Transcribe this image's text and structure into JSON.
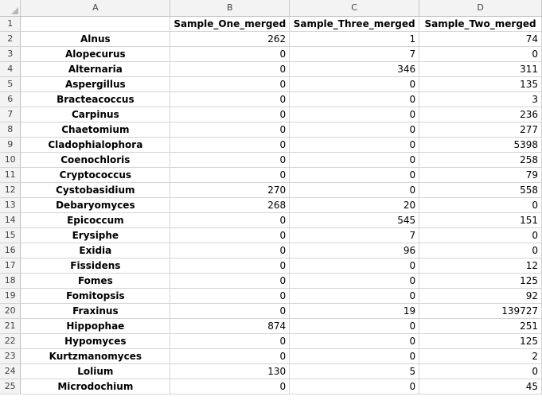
{
  "column_letters": [
    "A",
    "B",
    "C",
    "D"
  ],
  "header_row": {
    "row_number": "1",
    "cells": [
      "",
      "Sample_One_merged",
      "Sample_Three_merged",
      "Sample_Two_merged"
    ]
  },
  "rows": [
    {
      "row_number": "2",
      "name": "Alnus",
      "one": "262",
      "three": "1",
      "two": "74"
    },
    {
      "row_number": "3",
      "name": "Alopecurus",
      "one": "0",
      "three": "7",
      "two": "0"
    },
    {
      "row_number": "4",
      "name": "Alternaria",
      "one": "0",
      "three": "346",
      "two": "311"
    },
    {
      "row_number": "5",
      "name": "Aspergillus",
      "one": "0",
      "three": "0",
      "two": "135"
    },
    {
      "row_number": "6",
      "name": "Bracteacoccus",
      "one": "0",
      "three": "0",
      "two": "3"
    },
    {
      "row_number": "7",
      "name": "Carpinus",
      "one": "0",
      "three": "0",
      "two": "236"
    },
    {
      "row_number": "8",
      "name": "Chaetomium",
      "one": "0",
      "three": "0",
      "two": "277"
    },
    {
      "row_number": "9",
      "name": "Cladophialophora",
      "one": "0",
      "three": "0",
      "two": "5398"
    },
    {
      "row_number": "10",
      "name": "Coenochloris",
      "one": "0",
      "three": "0",
      "two": "258"
    },
    {
      "row_number": "11",
      "name": "Cryptococcus",
      "one": "0",
      "three": "0",
      "two": "79"
    },
    {
      "row_number": "12",
      "name": "Cystobasidium",
      "one": "270",
      "three": "0",
      "two": "558"
    },
    {
      "row_number": "13",
      "name": "Debaryomyces",
      "one": "268",
      "three": "20",
      "two": "0"
    },
    {
      "row_number": "14",
      "name": "Epicoccum",
      "one": "0",
      "three": "545",
      "two": "151"
    },
    {
      "row_number": "15",
      "name": "Erysiphe",
      "one": "0",
      "three": "7",
      "two": "0"
    },
    {
      "row_number": "16",
      "name": "Exidia",
      "one": "0",
      "three": "96",
      "two": "0"
    },
    {
      "row_number": "17",
      "name": "Fissidens",
      "one": "0",
      "three": "0",
      "two": "12"
    },
    {
      "row_number": "18",
      "name": "Fomes",
      "one": "0",
      "three": "0",
      "two": "125"
    },
    {
      "row_number": "19",
      "name": "Fomitopsis",
      "one": "0",
      "three": "0",
      "two": "92"
    },
    {
      "row_number": "20",
      "name": "Fraxinus",
      "one": "0",
      "three": "19",
      "two": "139727"
    },
    {
      "row_number": "21",
      "name": "Hippophae",
      "one": "874",
      "three": "0",
      "two": "251"
    },
    {
      "row_number": "22",
      "name": "Hypomyces",
      "one": "0",
      "three": "0",
      "two": "125"
    },
    {
      "row_number": "23",
      "name": "Kurtzmanomyces",
      "one": "0",
      "three": "0",
      "two": "2"
    },
    {
      "row_number": "24",
      "name": "Lolium",
      "one": "130",
      "three": "5",
      "two": "0"
    },
    {
      "row_number": "25",
      "name": "Microdochium",
      "one": "0",
      "three": "0",
      "two": "45"
    }
  ]
}
